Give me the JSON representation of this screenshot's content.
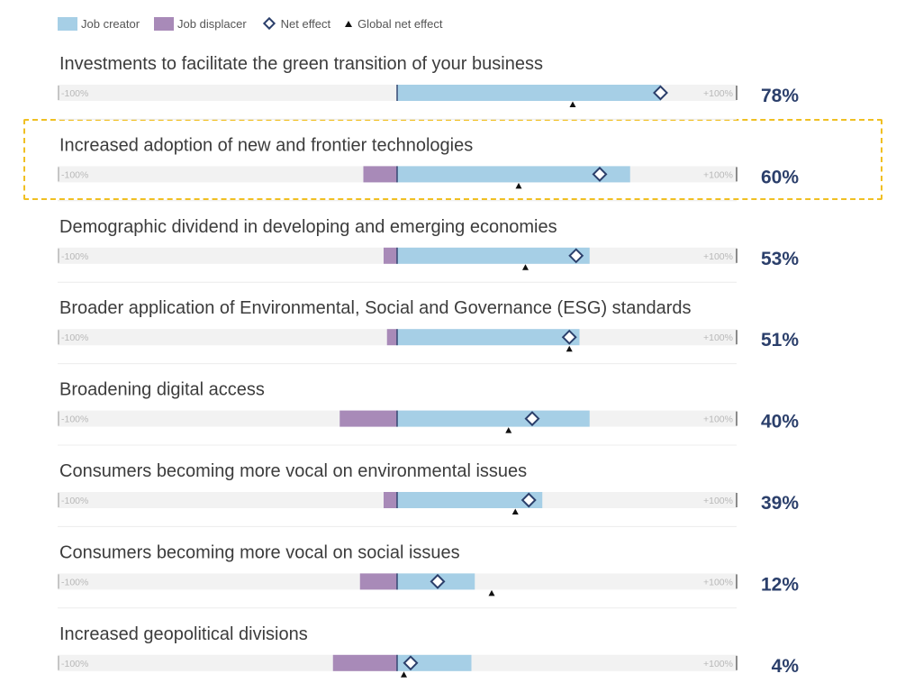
{
  "legend": {
    "creator": "Job creator",
    "displacer": "Job displacer",
    "net": "Net effect",
    "global": "Global net effect"
  },
  "colors": {
    "creator": "#a6cfe6",
    "displacer": "#a88ab8",
    "net_marker": "#2b3f6b",
    "global_marker": "#111111",
    "track": "#f2f2f2",
    "highlight": "#f0bf22"
  },
  "chart_data": {
    "type": "bar",
    "orientation": "horizontal-diverging",
    "scale_min_label": "-100%",
    "scale_max_label": "+100%",
    "xlim": [
      -100,
      100
    ],
    "highlighted_category": "Increased adoption of new and frontier technologies",
    "rows": [
      {
        "label": "Investments to facilitate the green transition of your business",
        "creator": 78,
        "displacer": 0,
        "net": 78,
        "global": 52,
        "value_label": "78%"
      },
      {
        "label": "Increased adoption of new and frontier technologies",
        "creator": 69,
        "displacer": -10,
        "net": 60,
        "global": 36,
        "value_label": "60%"
      },
      {
        "label": "Demographic dividend in developing and emerging economies",
        "creator": 57,
        "displacer": -4,
        "net": 53,
        "global": 38,
        "value_label": "53%"
      },
      {
        "label": "Broader application of Environmental, Social and Governance (ESG) standards",
        "creator": 54,
        "displacer": -3,
        "net": 51,
        "global": 51,
        "value_label": "51%"
      },
      {
        "label": "Broadening digital access",
        "creator": 57,
        "displacer": -17,
        "net": 40,
        "global": 33,
        "value_label": "40%"
      },
      {
        "label": "Consumers becoming more vocal on environmental issues",
        "creator": 43,
        "displacer": -4,
        "net": 39,
        "global": 35,
        "value_label": "39%"
      },
      {
        "label": "Consumers becoming more vocal on social issues",
        "creator": 23,
        "displacer": -11,
        "net": 12,
        "global": 28,
        "value_label": "12%"
      },
      {
        "label": "Increased geopolitical divisions",
        "creator": 22,
        "displacer": -19,
        "net": 4,
        "global": 2,
        "value_label": "4%"
      }
    ]
  }
}
